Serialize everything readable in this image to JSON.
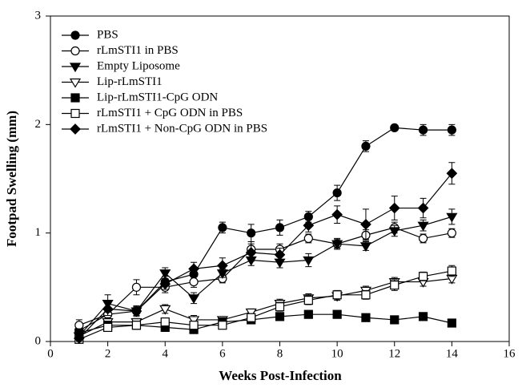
{
  "chart_data": {
    "type": "line",
    "x_label": "Weeks Post-Infection",
    "y_label": "Footpad Swelling (mm)",
    "x": [
      1,
      2,
      3,
      4,
      5,
      6,
      7,
      8,
      9,
      10,
      11,
      12,
      13,
      14
    ],
    "xlim": [
      0,
      16
    ],
    "xticks": [
      0,
      2,
      4,
      6,
      8,
      10,
      12,
      14,
      16
    ],
    "ylim": [
      0,
      3
    ],
    "yticks": [
      0,
      1,
      2,
      3
    ],
    "legend": "upper left",
    "series": [
      {
        "name": "PBS",
        "color": "#000000",
        "marker": "circle",
        "filled": true,
        "values": [
          0.1,
          0.25,
          0.28,
          0.55,
          0.62,
          1.05,
          1.0,
          1.05,
          1.15,
          1.37,
          1.8,
          1.97,
          1.95,
          1.95
        ],
        "errors": [
          0.05,
          0.05,
          0.04,
          0.05,
          0.06,
          0.05,
          0.08,
          0.07,
          0.05,
          0.07,
          0.05,
          0.02,
          0.05,
          0.05
        ]
      },
      {
        "name": "rLmSTI1 in PBS",
        "color": "#000000",
        "marker": "circle",
        "filled": false,
        "values": [
          0.15,
          0.25,
          0.5,
          0.5,
          0.55,
          0.58,
          0.85,
          0.85,
          0.95,
          0.9,
          0.98,
          1.05,
          0.95,
          1.0
        ],
        "errors": [
          0.05,
          0.05,
          0.07,
          0.05,
          0.05,
          0.04,
          0.07,
          0.05,
          0.04,
          0.04,
          0.05,
          0.05,
          0.04,
          0.04
        ]
      },
      {
        "name": "Empty Liposome",
        "color": "#000000",
        "marker": "tri-down",
        "filled": true,
        "values": [
          0.05,
          0.35,
          0.28,
          0.63,
          0.4,
          0.63,
          0.75,
          0.73,
          0.75,
          0.9,
          0.88,
          1.02,
          1.07,
          1.15
        ],
        "errors": [
          0.04,
          0.08,
          0.05,
          0.05,
          0.05,
          0.04,
          0.05,
          0.05,
          0.06,
          0.05,
          0.04,
          0.05,
          0.05,
          0.07
        ]
      },
      {
        "name": "Lip-rLmSTI1",
        "color": "#000000",
        "marker": "tri-down",
        "filled": false,
        "values": [
          0.05,
          0.18,
          0.18,
          0.3,
          0.2,
          0.2,
          0.27,
          0.35,
          0.4,
          0.42,
          0.47,
          0.55,
          0.55,
          0.58
        ],
        "errors": [
          0.03,
          0.04,
          0.03,
          0.04,
          0.04,
          0.03,
          0.03,
          0.04,
          0.04,
          0.04,
          0.04,
          0.04,
          0.04,
          0.04
        ]
      },
      {
        "name": "Lip-rLmSTI1-CpG ODN",
        "color": "#000000",
        "marker": "square",
        "filled": true,
        "values": [
          0.08,
          0.15,
          0.15,
          0.13,
          0.11,
          0.18,
          0.2,
          0.23,
          0.25,
          0.25,
          0.22,
          0.2,
          0.23,
          0.17
        ],
        "errors": [
          0.03,
          0.03,
          0.03,
          0.03,
          0.03,
          0.03,
          0.03,
          0.03,
          0.03,
          0.03,
          0.03,
          0.02,
          0.03,
          0.02
        ]
      },
      {
        "name": "rLmSTI1 + CpG ODN in PBS",
        "color": "#000000",
        "marker": "square",
        "filled": false,
        "values": [
          0.02,
          0.13,
          0.15,
          0.18,
          0.15,
          0.15,
          0.22,
          0.32,
          0.38,
          0.43,
          0.43,
          0.52,
          0.6,
          0.65
        ],
        "errors": [
          0.03,
          0.03,
          0.03,
          0.03,
          0.03,
          0.03,
          0.03,
          0.04,
          0.04,
          0.04,
          0.04,
          0.05,
          0.04,
          0.05
        ]
      },
      {
        "name": "rLmSTI1 + Non-CpG ODN in PBS",
        "color": "#000000",
        "marker": "diamond",
        "filled": true,
        "values": [
          0.03,
          0.3,
          0.28,
          0.53,
          0.67,
          0.7,
          0.82,
          0.8,
          1.07,
          1.17,
          1.08,
          1.23,
          1.23,
          1.55
        ],
        "errors": [
          0.03,
          0.06,
          0.04,
          0.05,
          0.06,
          0.07,
          0.08,
          0.06,
          0.06,
          0.08,
          0.14,
          0.11,
          0.09,
          0.1
        ]
      }
    ]
  }
}
